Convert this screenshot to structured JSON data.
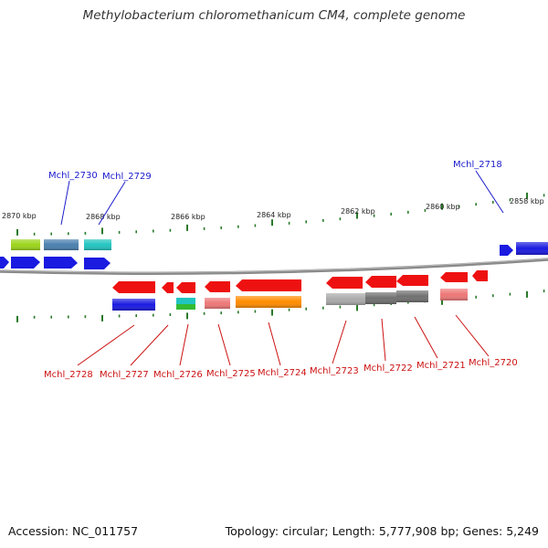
{
  "title": "Methylobacterium chloromethanicum CM4, complete genome",
  "footer": {
    "accession": "Accession: NC_011757",
    "info": "Topology: circular; Length: 5,777,908 bp; Genes: 5,249"
  },
  "colors": {
    "forward_label": "#1a1acc",
    "reverse_label": "#cc1111",
    "backbone": "#888888",
    "ticks": "#2a7a2a"
  },
  "kbp_labels": [
    "2870 kbp",
    "2868 kbp",
    "2866 kbp",
    "2864 kbp",
    "2862 kbp",
    "2860 kbp",
    "2858 kbp"
  ],
  "gene_labels_top": [
    "Mchl_2730",
    "Mchl_2729",
    "Mchl_2718"
  ],
  "gene_labels_bottom": [
    "Mchl_2728",
    "Mchl_2727",
    "Mchl_2726",
    "Mchl_2725",
    "Mchl_2724",
    "Mchl_2723",
    "Mchl_2722",
    "Mchl_2721",
    "Mchl_2720"
  ]
}
